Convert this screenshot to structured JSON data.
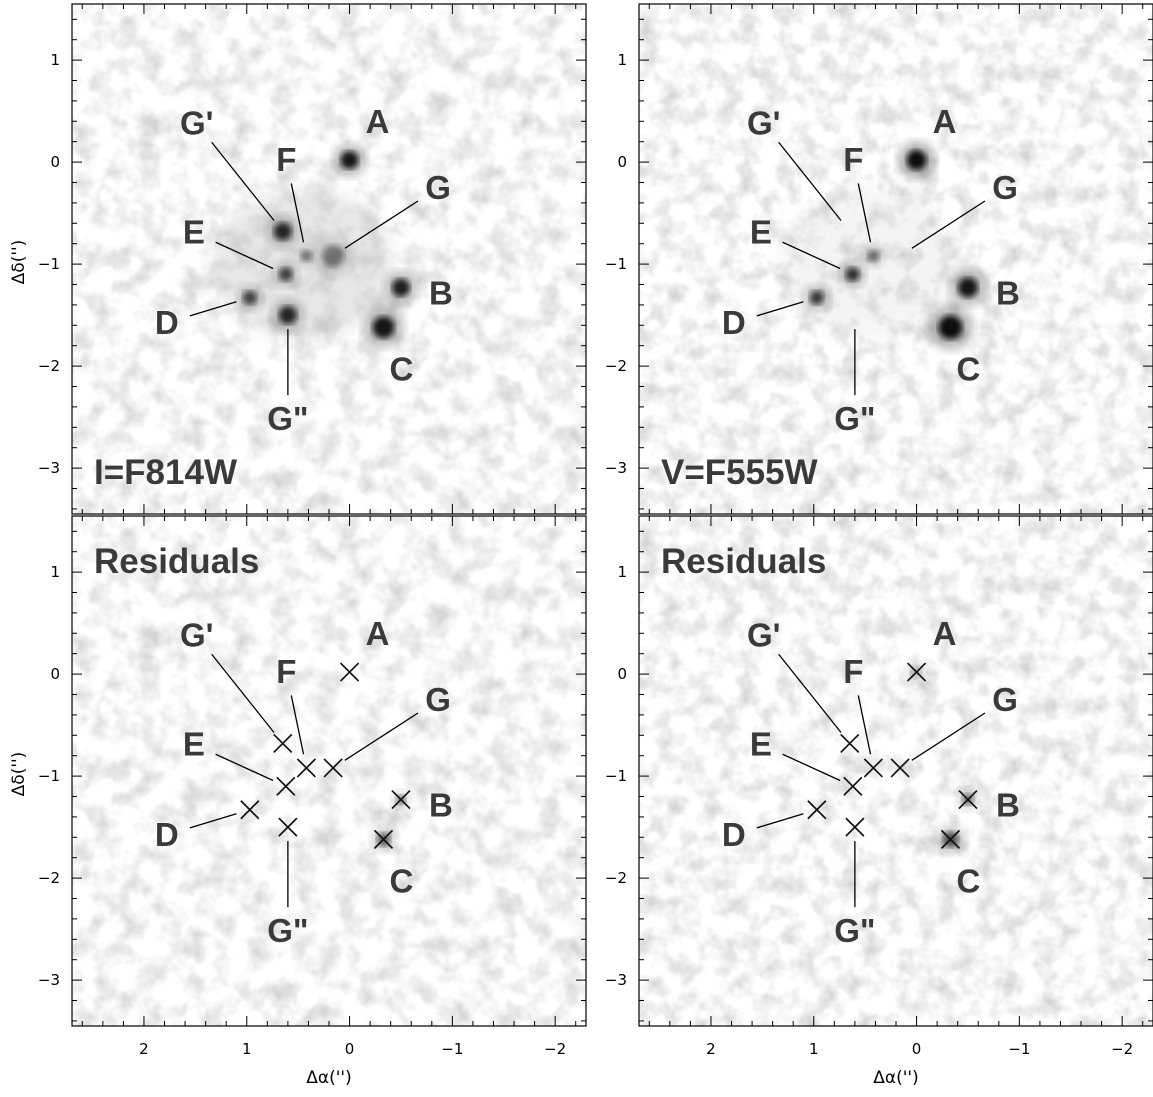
{
  "figure": {
    "panels": [
      {
        "id": "i",
        "band_label": "I=F814W",
        "residual": false,
        "shapes": "i-direct"
      },
      {
        "id": "v",
        "band_label": "V=F555W",
        "residual": false,
        "shapes": "v-direct"
      },
      {
        "id": "ri",
        "band_label": "Residuals",
        "residual": true,
        "shapes": "i-resid"
      },
      {
        "id": "rv",
        "band_label": "Residuals",
        "residual": true,
        "shapes": "v-resid"
      }
    ],
    "axes": {
      "xlabel": "Δα('')",
      "ylabel": "Δδ('')",
      "xlim": [
        2.7,
        -2.3
      ],
      "ylim": [
        -3.45,
        1.55
      ],
      "x_ticks": [
        {
          "v": 2,
          "t": "2"
        },
        {
          "v": 1,
          "t": "1"
        },
        {
          "v": 0,
          "t": "0"
        },
        {
          "v": -1,
          "t": "−1"
        },
        {
          "v": -2,
          "t": "−2"
        }
      ],
      "y_ticks": [
        {
          "v": 1,
          "t": "1"
        },
        {
          "v": 0,
          "t": "0"
        },
        {
          "v": -1,
          "t": "−1"
        },
        {
          "v": -2,
          "t": "−2"
        },
        {
          "v": -3,
          "t": "−3"
        }
      ]
    },
    "sources": [
      {
        "name": "A",
        "x": 0.0,
        "y": 0.02
      },
      {
        "name": "B",
        "x": -0.5,
        "y": -1.23
      },
      {
        "name": "C",
        "x": -0.33,
        "y": -1.62
      },
      {
        "name": "D",
        "x": 0.97,
        "y": -1.33
      },
      {
        "name": "E",
        "x": 0.62,
        "y": -1.1
      },
      {
        "name": "F",
        "x": 0.42,
        "y": -0.92
      },
      {
        "name": "G",
        "x": 0.16,
        "y": -0.92
      },
      {
        "name": "G'",
        "x": 0.65,
        "y": -0.68
      },
      {
        "name": "G\"",
        "x": 0.6,
        "y": -1.5
      }
    ],
    "colors": {
      "label": "#3a3a3a",
      "frame": "#000000",
      "background": "#ffffff"
    }
  }
}
